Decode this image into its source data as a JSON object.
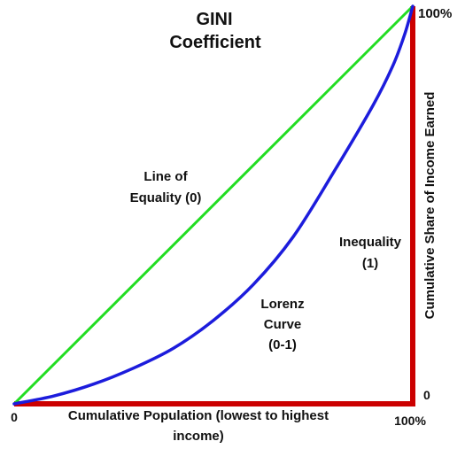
{
  "chart_data": {
    "type": "line",
    "title": [
      "GINI",
      "Coefficient"
    ],
    "xlabel": [
      "Cumulative Population (lowest to highest",
      "income)"
    ],
    "ylabel": "Cumulative Share of Income Earned",
    "xlim": [
      0,
      100
    ],
    "ylim": [
      0,
      100
    ],
    "x_ticks": {
      "start": "0",
      "end": "100%"
    },
    "y_ticks": {
      "start": "0",
      "end": "100%"
    },
    "grid": false,
    "legend": "none",
    "series": [
      {
        "key": "equality",
        "color": "#22dd22",
        "points": [
          [
            0,
            0
          ],
          [
            100,
            100
          ]
        ]
      },
      {
        "key": "lorenz",
        "color": "#1c1cdc",
        "points": [
          [
            0,
            0
          ],
          [
            10,
            2
          ],
          [
            20,
            5
          ],
          [
            30,
            9
          ],
          [
            40,
            14
          ],
          [
            50,
            21
          ],
          [
            60,
            30
          ],
          [
            70,
            42
          ],
          [
            80,
            58
          ],
          [
            90,
            75
          ],
          [
            95,
            85
          ],
          [
            98,
            93
          ],
          [
            100,
            100
          ]
        ]
      },
      {
        "key": "inequality",
        "color": "#cc0000",
        "points": [
          [
            0,
            0
          ],
          [
            100,
            0
          ],
          [
            100,
            100
          ]
        ]
      }
    ],
    "annotations": {
      "equality": [
        "Line of",
        "Equality (0)"
      ],
      "lorenz": [
        "Lorenz",
        "Curve",
        "(0-1)"
      ],
      "inequality": [
        "Inequality",
        "(1)"
      ]
    }
  }
}
